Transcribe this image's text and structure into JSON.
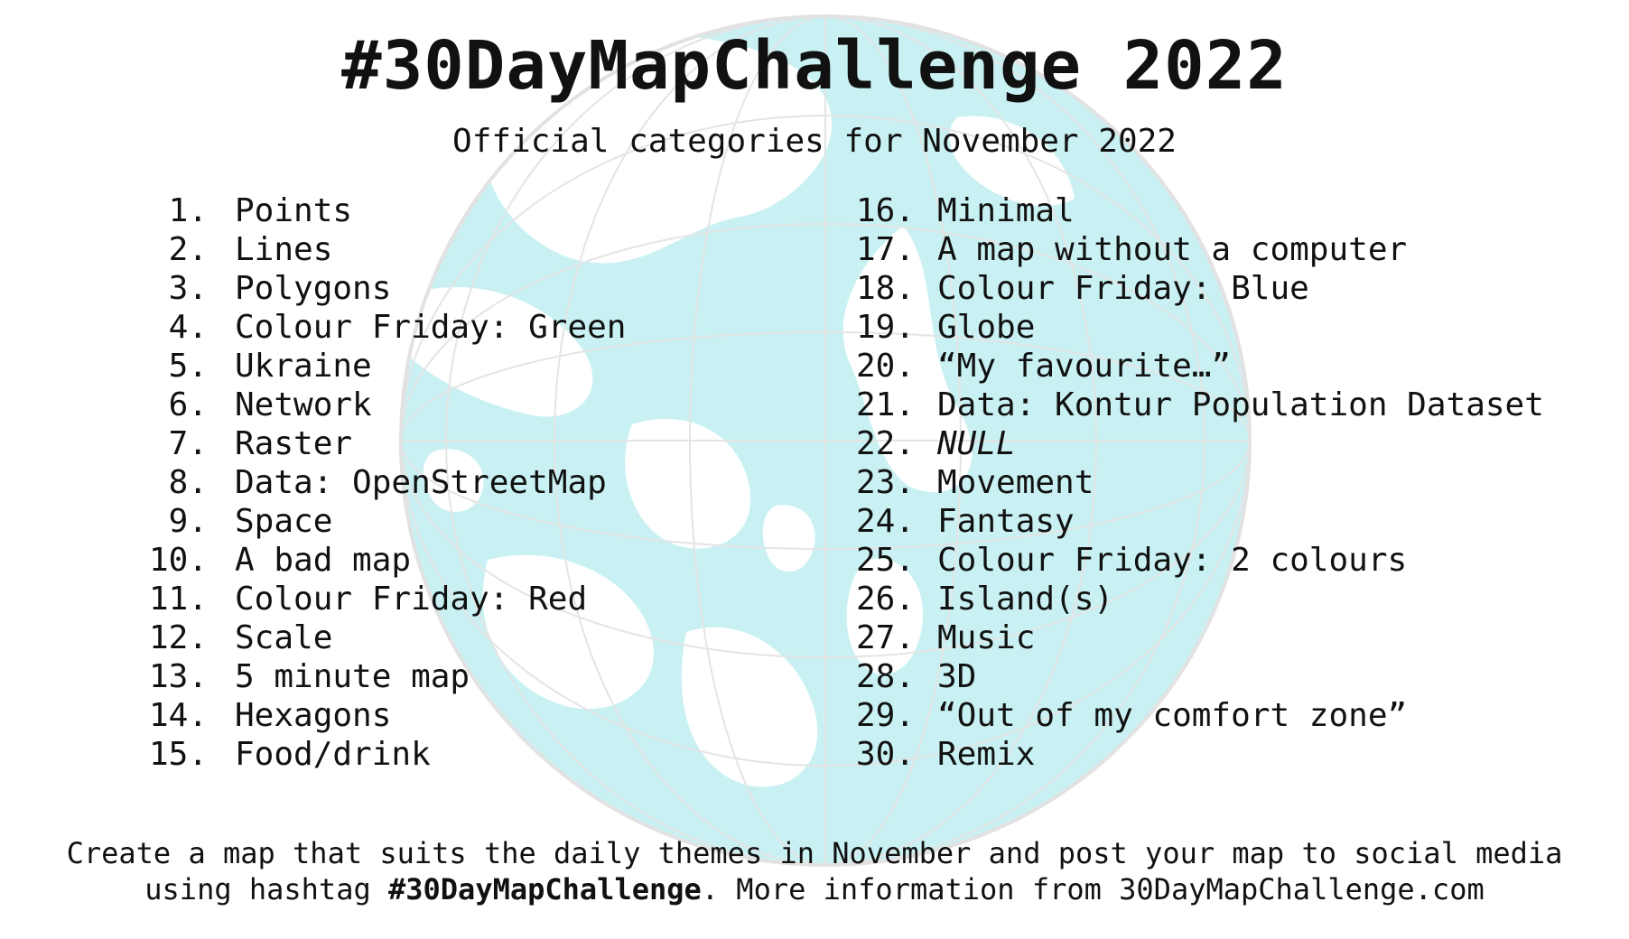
{
  "header": {
    "title": "#30DayMapChallenge 2022",
    "subtitle": "Official categories for November 2022"
  },
  "left_items": [
    {
      "num": "1.",
      "label": "Points"
    },
    {
      "num": "2.",
      "label": "Lines"
    },
    {
      "num": "3.",
      "label": "Polygons"
    },
    {
      "num": "4.",
      "label": "Colour Friday: Green"
    },
    {
      "num": "5.",
      "label": "Ukraine"
    },
    {
      "num": "6.",
      "label": "Network"
    },
    {
      "num": "7.",
      "label": "Raster"
    },
    {
      "num": "8.",
      "label": "Data: OpenStreetMap"
    },
    {
      "num": "9.",
      "label": "Space"
    },
    {
      "num": "10.",
      "label": "A bad map"
    },
    {
      "num": "11.",
      "label": "Colour Friday: Red"
    },
    {
      "num": "12.",
      "label": "Scale"
    },
    {
      "num": "13.",
      "label": "5 minute map"
    },
    {
      "num": "14.",
      "label": "Hexagons"
    },
    {
      "num": "15.",
      "label": "Food/drink"
    }
  ],
  "right_items": [
    {
      "num": "16.",
      "label": "Minimal"
    },
    {
      "num": "17.",
      "label": "A map without a computer"
    },
    {
      "num": "18.",
      "label": "Colour Friday: Blue"
    },
    {
      "num": "19.",
      "label": "Globe"
    },
    {
      "num": "20.",
      "label": "“My favourite…”"
    },
    {
      "num": "21.",
      "label": "Data: Kontur Population Dataset"
    },
    {
      "num": "22.",
      "label": "NULL"
    },
    {
      "num": "23.",
      "label": "Movement"
    },
    {
      "num": "24.",
      "label": "Fantasy"
    },
    {
      "num": "25.",
      "label": "Colour Friday: 2 colours"
    },
    {
      "num": "26.",
      "label": "Island(s)"
    },
    {
      "num": "27.",
      "label": "Music"
    },
    {
      "num": "28.",
      "label": "3D"
    },
    {
      "num": "29.",
      "label": "“Out of my comfort zone”"
    },
    {
      "num": "30.",
      "label": "Remix"
    }
  ],
  "footer": {
    "line1": "Create a map that suits the daily themes in November and post your map to social media",
    "line2_before": "using hashtag ",
    "line2_hashtag": "#30DayMapChallenge",
    "line2_after": ". More information from 30DayMapChallenge.com"
  },
  "colors": {
    "ocean": "#c9f1f3",
    "land": "#ffffff",
    "text": "#111111"
  }
}
